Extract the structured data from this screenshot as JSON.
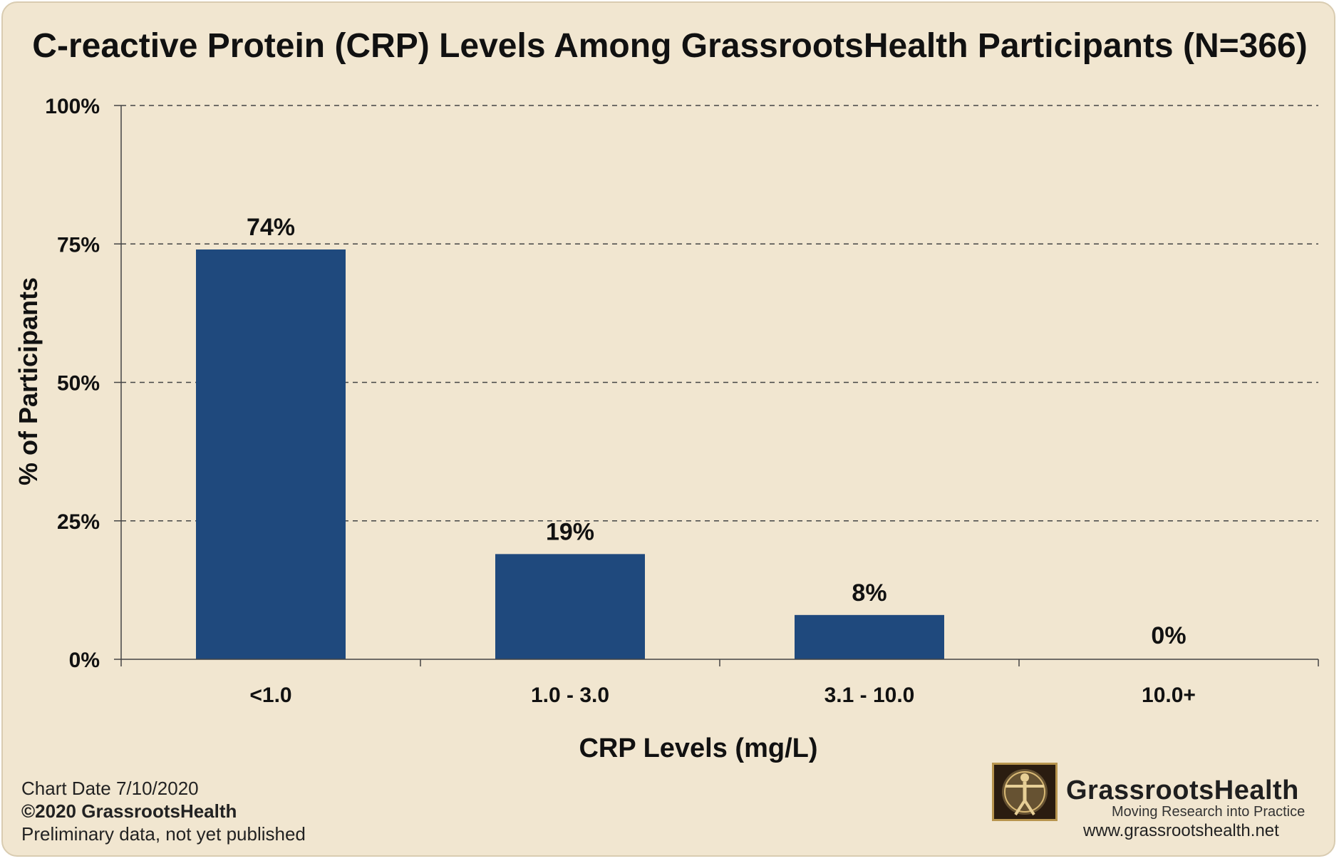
{
  "chart_data": {
    "type": "bar",
    "title": "C-reactive Protein (CRP) Levels Among GrassrootsHealth Participants (N=366)",
    "xlabel": "CRP Levels (mg/L)",
    "ylabel": "% of Participants",
    "categories": [
      "<1.0",
      "1.0 - 3.0",
      "3.1 - 10.0",
      "10.0+"
    ],
    "values": [
      74,
      19,
      8,
      0
    ],
    "data_labels": [
      "74%",
      "19%",
      "8%",
      "0%"
    ],
    "ylim": [
      0,
      100
    ],
    "yticks": [
      0,
      25,
      50,
      75,
      100
    ],
    "ytick_labels": [
      "0%",
      "25%",
      "50%",
      "75%",
      "100%"
    ],
    "grid": "dashed horizontal",
    "bar_color": "#1f497d"
  },
  "footer": {
    "chart_date": "Chart Date 7/10/2020",
    "copyright": "©2020 GrassrootsHealth",
    "note": "Preliminary data, not yet published"
  },
  "logo": {
    "brand": "GrassrootsHealth",
    "tagline": "Moving Research into Practice",
    "url": "www.grassrootshealth.net",
    "icon": "vitruvian-man-icon"
  },
  "colors": {
    "background": "#f1e6d0",
    "bar": "#1f497d",
    "text": "#111111"
  }
}
